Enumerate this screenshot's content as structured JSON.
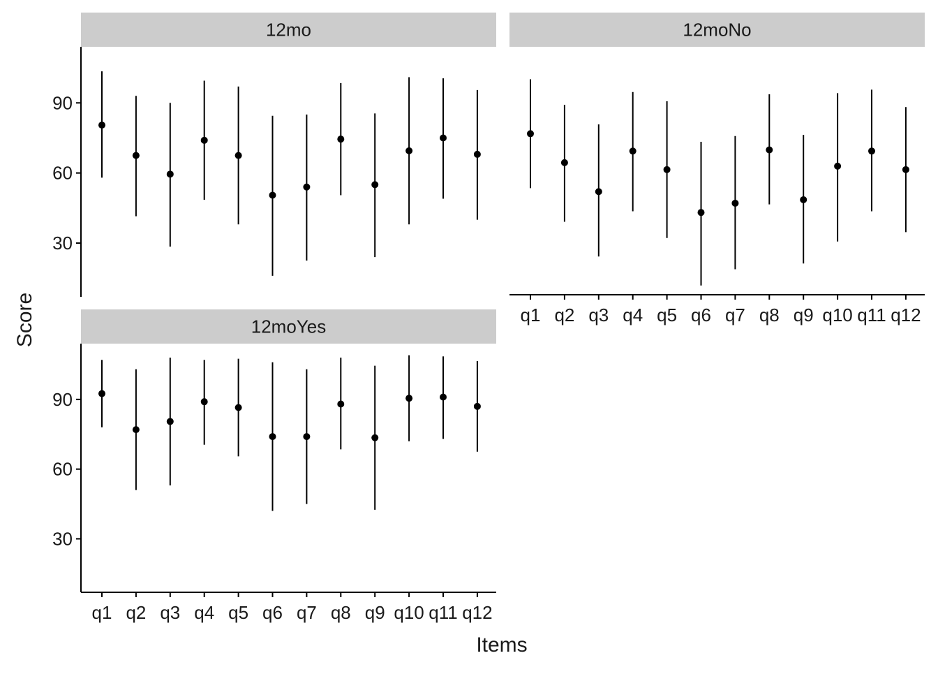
{
  "chart_data": {
    "type": "scatter",
    "style": "pointrange",
    "facets": [
      {
        "title": "12mo",
        "categories": [
          "q1",
          "q2",
          "q3",
          "q4",
          "q5",
          "q6",
          "q7",
          "q8",
          "q9",
          "q10",
          "q11",
          "q12"
        ],
        "mean": [
          80.5,
          67.5,
          59.5,
          74,
          67.5,
          50.5,
          54,
          74.5,
          55,
          69.5,
          75,
          68
        ],
        "lower": [
          58,
          41.5,
          28.5,
          48.5,
          38,
          16,
          22.5,
          50.5,
          24,
          38,
          49,
          40
        ],
        "upper": [
          103.5,
          93,
          90,
          99.5,
          97,
          84.5,
          85,
          98.5,
          85.5,
          101,
          100.5,
          95.5
        ]
      },
      {
        "title": "12moNo",
        "categories": [
          "q1",
          "q2",
          "q3",
          "q4",
          "q5",
          "q6",
          "q7",
          "q8",
          "q9",
          "q10",
          "q11",
          "q12"
        ],
        "mean": [
          76.5,
          64,
          51.5,
          69,
          61,
          42.5,
          46.5,
          69.5,
          48,
          62.5,
          69,
          61
        ],
        "lower": [
          53,
          38.5,
          23.5,
          43,
          31.5,
          11,
          18,
          46,
          20.5,
          30,
          43,
          34
        ],
        "upper": [
          100,
          89,
          80.5,
          94.5,
          90.5,
          73,
          75.5,
          93.5,
          76,
          94,
          95.5,
          88
        ]
      },
      {
        "title": "12moYes",
        "categories": [
          "q1",
          "q2",
          "q3",
          "q4",
          "q5",
          "q6",
          "q7",
          "q8",
          "q9",
          "q10",
          "q11",
          "q12"
        ],
        "mean": [
          92.5,
          77,
          80.5,
          89,
          86.5,
          74,
          74,
          88,
          73.5,
          90.5,
          91,
          87
        ],
        "lower": [
          78,
          51,
          53,
          70.5,
          65.5,
          42,
          45,
          68.5,
          42.5,
          72,
          73,
          67.5
        ],
        "upper": [
          107,
          103,
          108,
          107,
          107.5,
          106,
          103,
          108,
          104.5,
          109,
          108.5,
          106.5
        ]
      }
    ],
    "y_ticks": [
      30,
      60,
      90
    ],
    "ylim": [
      7,
      114
    ],
    "xlabel": "Items",
    "ylabel": "Score",
    "grid": false,
    "legend": "none",
    "colors": {
      "point": "#000000",
      "strip": "#cccccc",
      "background": "#ffffff"
    }
  }
}
